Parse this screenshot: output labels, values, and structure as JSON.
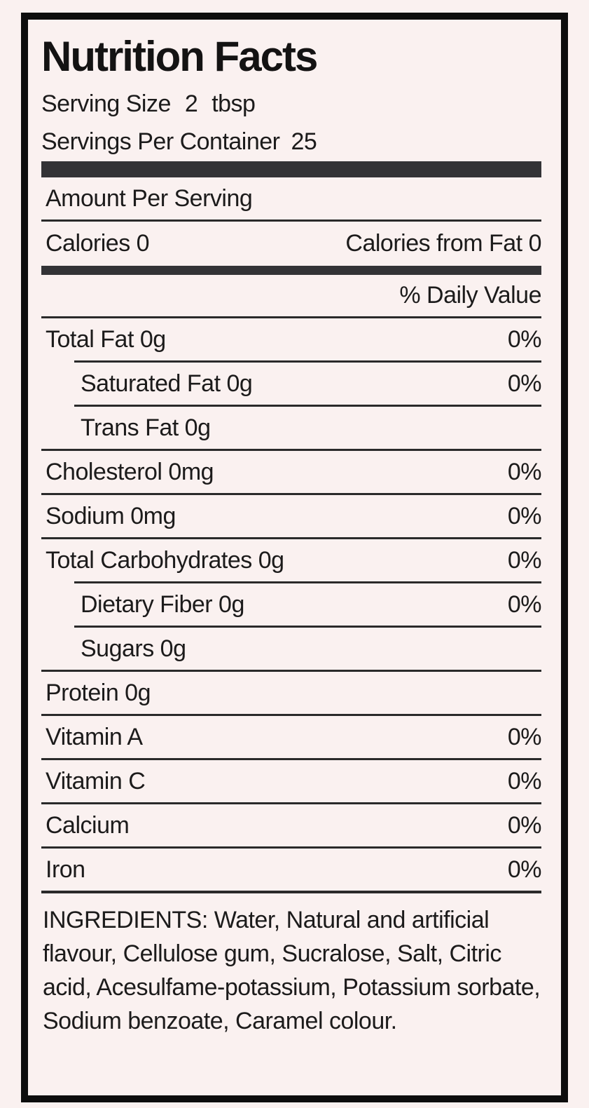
{
  "label": {
    "title": "Nutrition Facts",
    "serving_size": {
      "label": "Serving Size",
      "amount": "2",
      "unit": "tbsp"
    },
    "servings_per_container": {
      "label": "Servings Per Container",
      "value": "25"
    },
    "amount_per_serving": "Amount Per Serving",
    "calories": {
      "label": "Calories",
      "value": "0"
    },
    "calories_from_fat": {
      "label": "Calories from Fat",
      "value": "0"
    },
    "daily_value_header": "% Daily Value",
    "rows": [
      {
        "label": "Total Fat 0g",
        "value": "0%",
        "indent": false
      },
      {
        "label": "Saturated Fat 0g",
        "value": "0%",
        "indent": true
      },
      {
        "label": "Trans Fat 0g",
        "value": "",
        "indent": true
      },
      {
        "label": "Cholesterol 0mg",
        "value": "0%",
        "indent": false
      },
      {
        "label": "Sodium 0mg",
        "value": "0%",
        "indent": false
      },
      {
        "label": "Total Carbohydrates 0g",
        "value": "0%",
        "indent": false
      },
      {
        "label": "Dietary Fiber 0g",
        "value": "0%",
        "indent": true
      },
      {
        "label": "Sugars 0g",
        "value": "",
        "indent": true
      },
      {
        "label": "Protein 0g",
        "value": "",
        "indent": false
      },
      {
        "label": "Vitamin A",
        "value": "0%",
        "indent": false
      },
      {
        "label": "Vitamin C",
        "value": "0%",
        "indent": false
      },
      {
        "label": "Calcium",
        "value": "0%",
        "indent": false
      },
      {
        "label": "Iron",
        "value": "0%",
        "indent": false
      }
    ],
    "ingredients": "INGREDIENTS: Water, Natural and artificial flavour, Cellulose gum, Sucralose, Salt, Citric acid, Acesulfame-potassium, Potassium sorbate, Sodium benzoate, Caramel colour."
  },
  "colors": {
    "background": "#faf1f0",
    "text": "#1c1b1b",
    "bar": "#333336",
    "rule": "#2a2a2a",
    "border": "#0d0d0d"
  }
}
